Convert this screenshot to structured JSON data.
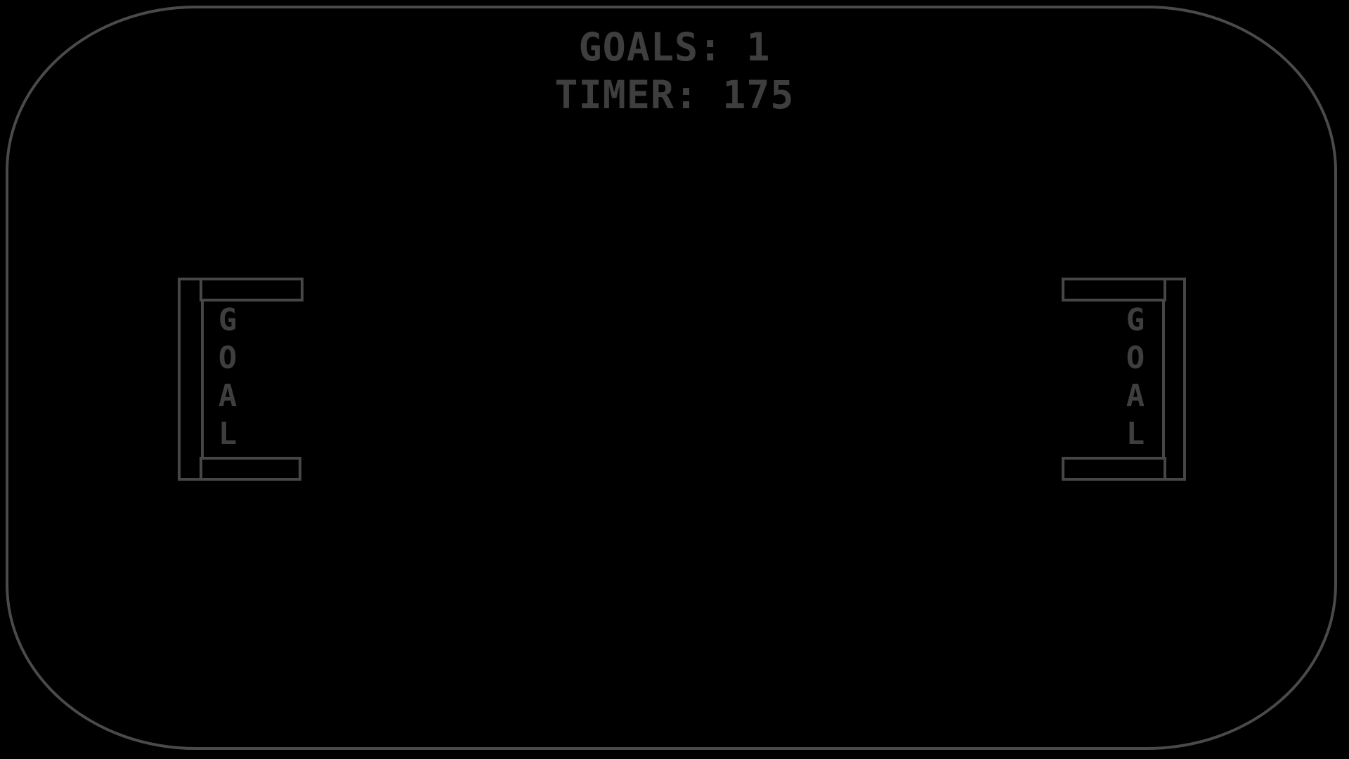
{
  "hud": {
    "goals_text": "GOALS: 1",
    "timer_text": "TIMER: 175"
  },
  "left_goal": {
    "letters": [
      "G",
      "O",
      "A",
      "L"
    ]
  },
  "right_goal": {
    "letters": [
      "G",
      "O",
      "A",
      "L"
    ]
  },
  "colors": {
    "background": "#000000",
    "rink_border": "#4a4a4a",
    "goal_post": "#464646",
    "text": "#3e3e3e"
  }
}
